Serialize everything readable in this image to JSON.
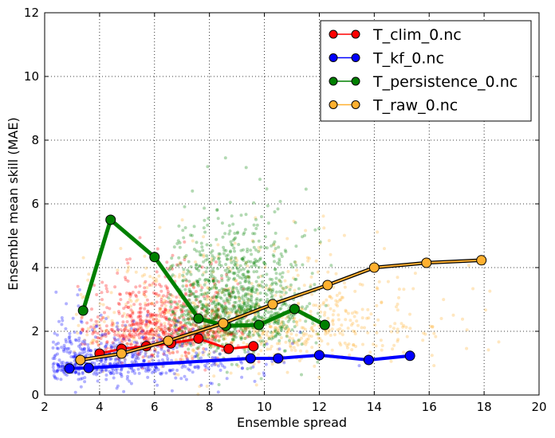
{
  "chart_data": {
    "type": "scatter",
    "xlabel": "Ensemble spread",
    "ylabel": "Ensemble mean skill (MAE)",
    "xlim": [
      2,
      20
    ],
    "ylim": [
      0,
      12
    ],
    "xticks": [
      "2",
      "4",
      "6",
      "8",
      "10",
      "12",
      "14",
      "16",
      "18",
      "20"
    ],
    "yticks": [
      "0",
      "2",
      "4",
      "6",
      "8",
      "10",
      "12"
    ],
    "grid": true,
    "legend_position": "top-right",
    "series": [
      {
        "name": "T_clim_0.nc",
        "color": "#ff0000",
        "binned_line": {
          "x": [
            4.0,
            4.8,
            5.7,
            6.6,
            7.6,
            8.7,
            9.6
          ],
          "y": [
            1.3,
            1.45,
            1.53,
            1.62,
            1.77,
            1.45,
            1.53
          ]
        },
        "scatter_cloud": {
          "x_range": [
            3.2,
            9.8
          ],
          "y_range": [
            0.2,
            6.3
          ],
          "center_x": 6.3,
          "center_y": 2.1
        }
      },
      {
        "name": "T_kf_0.nc",
        "color": "#0000ff",
        "binned_line": {
          "x": [
            2.9,
            3.6,
            9.5,
            10.5,
            12.0,
            13.8,
            15.3
          ],
          "y": [
            0.83,
            0.85,
            1.15,
            1.15,
            1.25,
            1.1,
            1.23
          ]
        },
        "scatter_cloud": {
          "x_range": [
            2.3,
            15.5
          ],
          "y_range": [
            0.0,
            4.5
          ],
          "center_x": 3.0,
          "center_y": 1.0
        }
      },
      {
        "name": "T_persistence_0.nc",
        "color": "#008000",
        "binned_line": {
          "x": [
            3.4,
            4.4,
            6.0,
            7.6,
            8.6,
            9.8,
            11.1,
            12.2
          ],
          "y": [
            2.65,
            5.5,
            4.33,
            2.4,
            2.17,
            2.2,
            2.7,
            2.2
          ]
        },
        "scatter_cloud": {
          "x_range": [
            6.5,
            12.5
          ],
          "y_range": [
            0.1,
            10.2
          ],
          "center_x": 8.8,
          "center_y": 2.8
        }
      },
      {
        "name": "T_raw_0.nc",
        "color": "#ffb030",
        "binned_line": {
          "x": [
            3.3,
            4.8,
            6.5,
            8.5,
            10.3,
            12.3,
            14.0,
            15.9,
            17.9
          ],
          "y": [
            1.1,
            1.3,
            1.7,
            2.25,
            2.85,
            3.45,
            4.0,
            4.15,
            4.23
          ]
        },
        "scatter_cloud": {
          "x_range": [
            3.0,
            18.8
          ],
          "y_range": [
            0.0,
            8.8
          ],
          "center_x": 9.0,
          "center_y": 2.2
        }
      }
    ]
  }
}
